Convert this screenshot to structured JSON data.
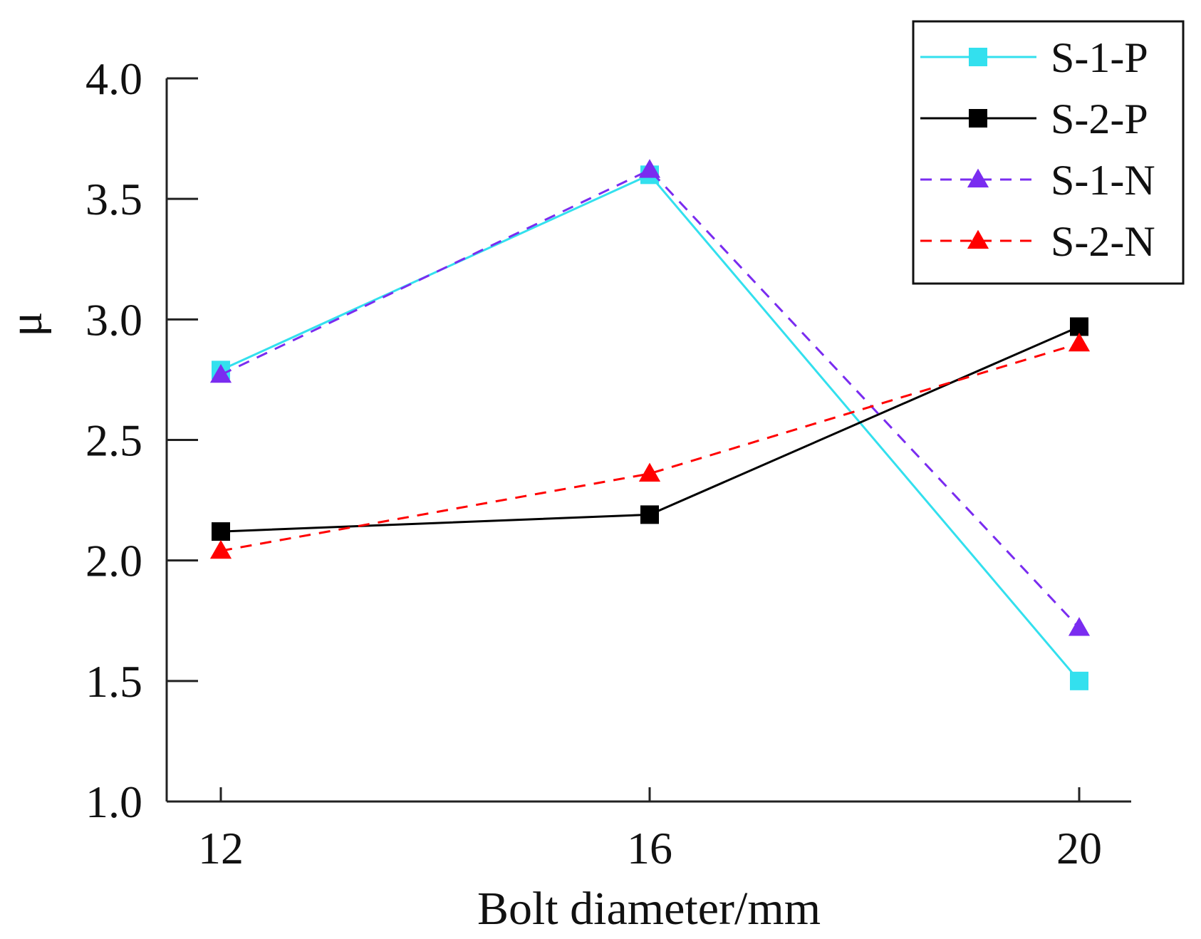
{
  "chart_data": {
    "type": "line",
    "title": "",
    "xlabel": "Bolt diameter/mm",
    "ylabel": "μ",
    "x": [
      12,
      16,
      20
    ],
    "x_tick_labels": [
      "12",
      "16",
      "20"
    ],
    "y_ticks": [
      1.0,
      1.5,
      2.0,
      2.5,
      3.0,
      3.5,
      4.0
    ],
    "y_tick_labels": [
      "1.0",
      "1.5",
      "2.0",
      "2.5",
      "3.0",
      "3.5",
      "4.0"
    ],
    "ylim": [
      1.0,
      4.0
    ],
    "legend_position": "top-right",
    "series": [
      {
        "name": "S-1-P",
        "values": [
          2.79,
          3.6,
          1.5
        ],
        "color": "#33e0ee",
        "marker": "square",
        "dashed": false
      },
      {
        "name": "S-2-P",
        "values": [
          2.12,
          2.19,
          2.97
        ],
        "color": "#000000",
        "marker": "square",
        "dashed": false
      },
      {
        "name": "S-1-N",
        "values": [
          2.77,
          3.62,
          1.72
        ],
        "color": "#7a2cf0",
        "marker": "triangle",
        "dashed": true
      },
      {
        "name": "S-2-N",
        "values": [
          2.04,
          2.36,
          2.9
        ],
        "color": "#ff0000",
        "marker": "triangle",
        "dashed": true
      }
    ]
  }
}
